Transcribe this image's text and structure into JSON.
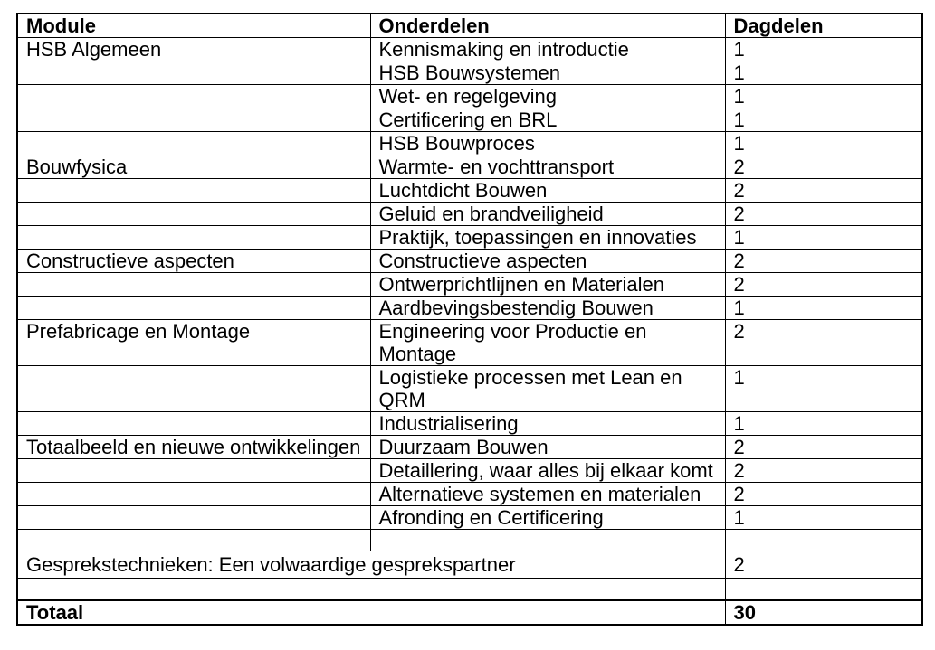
{
  "colors": {
    "border": "#000000",
    "text": "#000000",
    "page_background": "#ffffff"
  },
  "table": {
    "columns": [
      {
        "label": "Module"
      },
      {
        "label": "Onderdelen"
      },
      {
        "label": "Dagdelen"
      }
    ],
    "rows": [
      {
        "module": "HSB Algemeen",
        "onderdelen": "Kennismaking en introductie",
        "dagdelen": "1"
      },
      {
        "module": "",
        "onderdelen": "HSB Bouwsystemen",
        "dagdelen": "1"
      },
      {
        "module": "",
        "onderdelen": "Wet- en regelgeving",
        "dagdelen": "1"
      },
      {
        "module": "",
        "onderdelen": "Certificering en BRL",
        "dagdelen": "1"
      },
      {
        "module": "",
        "onderdelen": "HSB Bouwproces",
        "dagdelen": "1"
      },
      {
        "module": "Bouwfysica",
        "onderdelen": "Warmte- en vochttransport",
        "dagdelen": "2"
      },
      {
        "module": "",
        "onderdelen": "Luchtdicht Bouwen",
        "dagdelen": "2"
      },
      {
        "module": "",
        "onderdelen": "Geluid en brandveiligheid",
        "dagdelen": "2"
      },
      {
        "module": "",
        "onderdelen": "Praktijk, toepassingen en innovaties",
        "dagdelen": "1"
      },
      {
        "module": "Constructieve aspecten",
        "onderdelen": "Constructieve aspecten",
        "dagdelen": "2"
      },
      {
        "module": "",
        "onderdelen": "Ontwerprichtlijnen en Materialen",
        "dagdelen": "2"
      },
      {
        "module": "",
        "onderdelen": "Aardbevingsbestendig Bouwen",
        "dagdelen": "1"
      },
      {
        "module": "Prefabricage en Montage",
        "onderdelen": "Engineering voor Productie en Montage",
        "dagdelen": "2"
      },
      {
        "module": "",
        "onderdelen": "Logistieke processen met Lean en QRM",
        "dagdelen": "1"
      },
      {
        "module": "",
        "onderdelen": "Industrialisering",
        "dagdelen": "1"
      },
      {
        "module": "Totaalbeeld en nieuwe ontwikkelingen",
        "onderdelen": "Duurzaam Bouwen",
        "dagdelen": "2"
      },
      {
        "module": "",
        "onderdelen": "Detaillering, waar alles bij elkaar komt",
        "dagdelen": "2"
      },
      {
        "module": "",
        "onderdelen": "Alternatieve systemen en materialen",
        "dagdelen": "2"
      },
      {
        "module": "",
        "onderdelen": "Afronding en Certificering",
        "dagdelen": "1"
      },
      {
        "module": "",
        "onderdelen": "",
        "dagdelen": "",
        "type": "empty"
      },
      {
        "span": true,
        "label": "Gesprekstechnieken: Een volwaardige gesprekspartner",
        "dagdelen": "2",
        "type": "section"
      },
      {
        "span": true,
        "label": "",
        "dagdelen": "",
        "type": "empty"
      },
      {
        "span": true,
        "label": "Totaal",
        "dagdelen": "30",
        "type": "total"
      }
    ]
  }
}
